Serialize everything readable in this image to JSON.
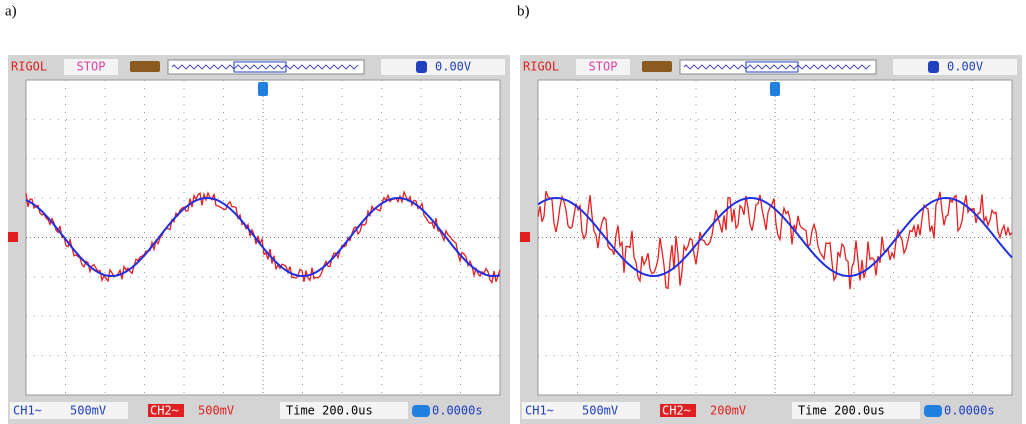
{
  "panels": [
    {
      "label": "a)",
      "brand": "RIGOL",
      "status": "STOP",
      "trigger_level": "0.00V",
      "ch1": "CH1~",
      "ch1_scale": "500mV",
      "ch2": "CH2~",
      "ch2_scale": "500mV",
      "time": "Time 200.0us",
      "offset": "0.0000s"
    },
    {
      "label": "b)",
      "brand": "RIGOL",
      "status": "STOP",
      "trigger_level": "0.00V",
      "ch1": "CH1~",
      "ch1_scale": "500mV",
      "ch2": "CH2~",
      "ch2_scale": "200mV",
      "time": "Time 200.0us",
      "offset": "0.0000s"
    }
  ]
}
